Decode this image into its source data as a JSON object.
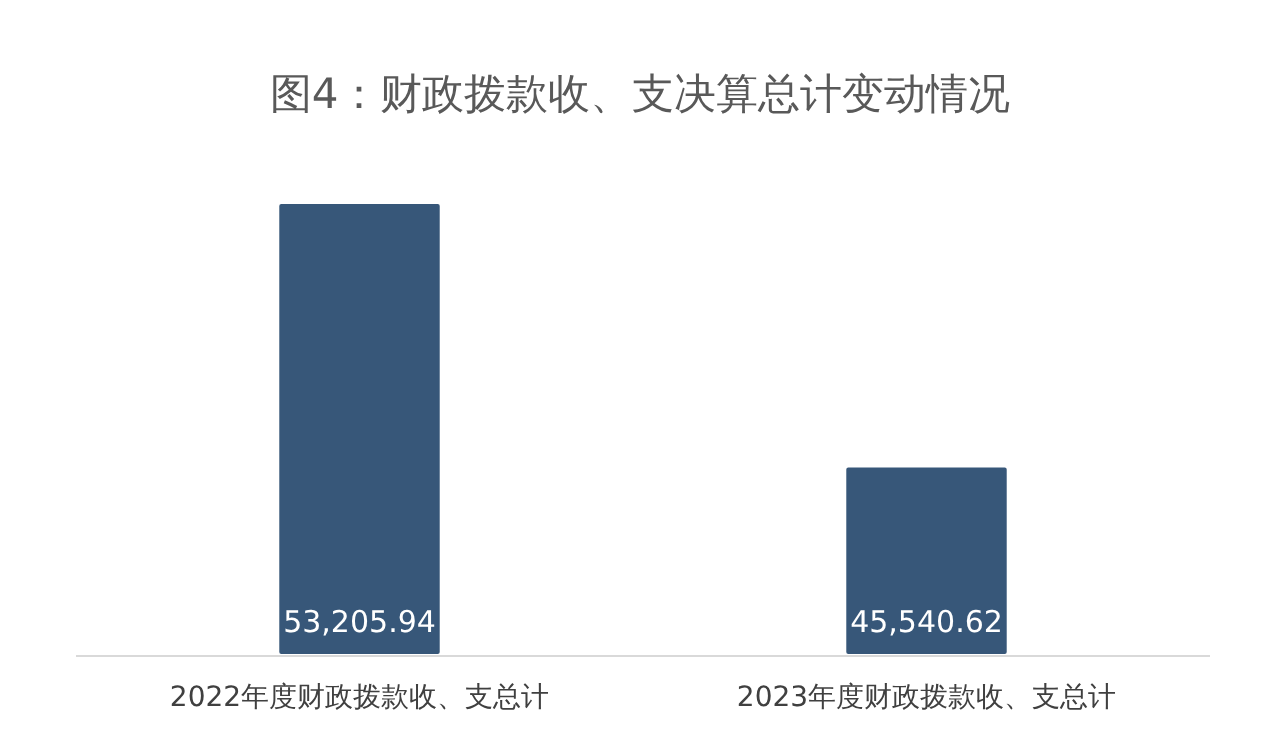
{
  "chart_data": {
    "type": "bar",
    "title": "图4：财政拨款收、支决算总计变动情况",
    "categories": [
      "2022年度财政拨款收、支总计",
      "2023年度财政拨款收、支总计"
    ],
    "values": [
      53205.94,
      45540.62
    ],
    "color": "#375779",
    "ylim": [
      40000,
      53205.94
    ],
    "tick_labels": "x",
    "data_labels": true,
    "value_labels": [
      "53,205.94",
      "45,540.62"
    ]
  }
}
